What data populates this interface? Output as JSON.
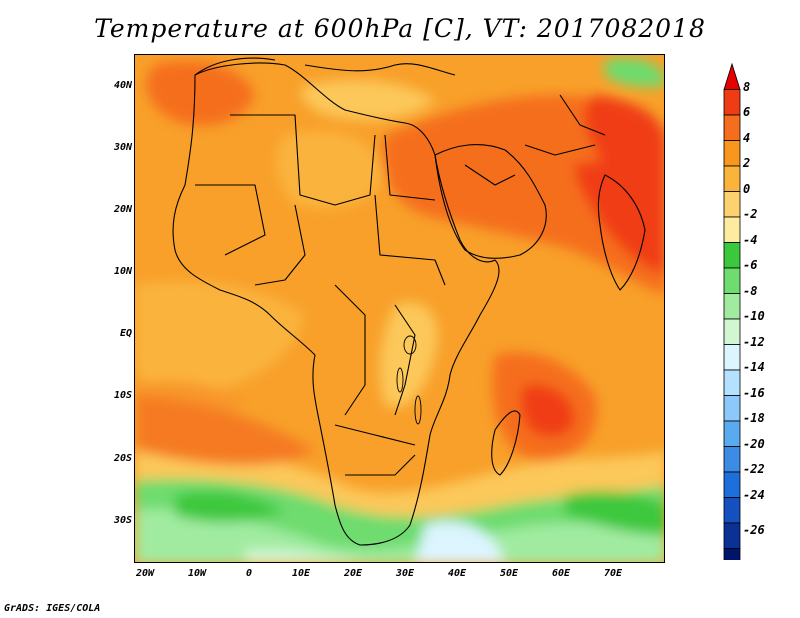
{
  "title": "Temperature at 600hPa [C], VT: 2017082018",
  "credit": "GrADS: IGES/COLA",
  "lat_labels": [
    "40N",
    "30N",
    "20N",
    "10N",
    "EQ",
    "10S",
    "20S",
    "30S"
  ],
  "lon_labels": [
    "20W",
    "10W",
    "0",
    "10E",
    "20E",
    "30E",
    "40E",
    "50E",
    "60E",
    "70E"
  ],
  "colorbar": {
    "labels": [
      "8",
      "6",
      "4",
      "2",
      "0",
      "-2",
      "-4",
      "-6",
      "-8",
      "-10",
      "-12",
      "-14",
      "-16",
      "-18",
      "-20",
      "-22",
      "-24",
      "-26"
    ],
    "colors": [
      "#e60000",
      "#f03c14",
      "#f56e1e",
      "#f8961e",
      "#fab43c",
      "#fcd26e",
      "#fdeba0",
      "#3cc83c",
      "#6edc6e",
      "#a0eba0",
      "#d2f5d2",
      "#dcf5ff",
      "#b4e1ff",
      "#8cc8fa",
      "#5aaaf0",
      "#3c8ce6",
      "#1e6edc",
      "#1450be",
      "#0a3296",
      "#00146e",
      "#e6e6ff"
    ]
  }
}
